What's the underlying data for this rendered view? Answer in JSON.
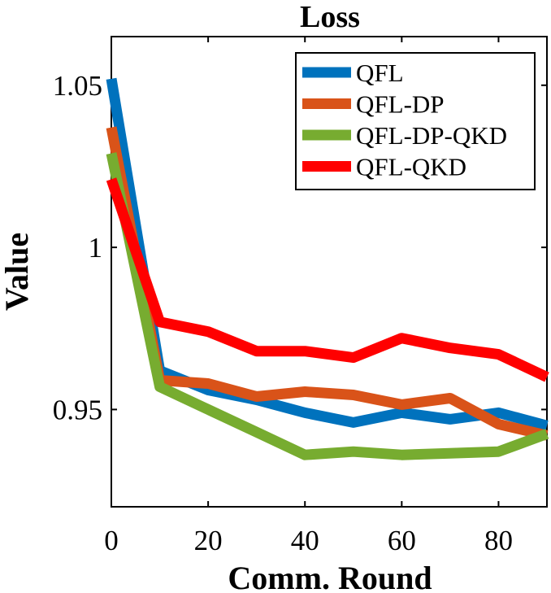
{
  "chart_data": {
    "type": "line",
    "title": "Loss",
    "xlabel": "Comm. Round",
    "ylabel": "Value",
    "xlim": [
      0,
      90
    ],
    "ylim": [
      0.92,
      1.065
    ],
    "xticks": [
      0,
      20,
      40,
      60,
      80
    ],
    "xtick_labels": [
      "0",
      "20",
      "40",
      "60",
      "80"
    ],
    "yticks": [
      0.95,
      1.0,
      1.05
    ],
    "ytick_labels": [
      "0.95",
      "1",
      "1.05"
    ],
    "legend_position": "top-right",
    "grid": false,
    "x": [
      0,
      10,
      20,
      30,
      40,
      50,
      60,
      70,
      80,
      90
    ],
    "series": [
      {
        "name": "QFL",
        "color": "#0072BD",
        "values": [
          1.052,
          0.962,
          0.956,
          0.953,
          0.949,
          0.946,
          0.949,
          0.947,
          0.949,
          0.945
        ]
      },
      {
        "name": "QFL-DP",
        "color": "#D95319",
        "values": [
          1.037,
          0.959,
          0.958,
          0.954,
          0.9555,
          0.9545,
          0.9515,
          0.9535,
          0.9455,
          0.942
        ]
      },
      {
        "name": "QFL-DP-QKD",
        "color": "#77AC30",
        "values": [
          1.029,
          0.957,
          0.95,
          0.943,
          0.936,
          0.937,
          0.936,
          0.9365,
          0.937,
          0.9425
        ]
      },
      {
        "name": "QFL-QKD",
        "color": "#FF0000",
        "values": [
          1.021,
          0.977,
          0.974,
          0.968,
          0.968,
          0.966,
          0.972,
          0.969,
          0.967,
          0.96
        ]
      }
    ]
  }
}
